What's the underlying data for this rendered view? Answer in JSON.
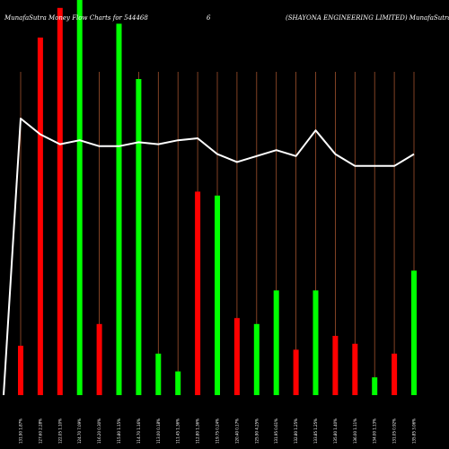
{
  "header": {
    "left": "MunafaSutra  Money Flow  Charts for 544468",
    "middle": "6",
    "right": "(SHAYONA ENGINEERING LIMITED) MunafaSutra.com"
  },
  "colors": {
    "background": "#000000",
    "up": "#00ff00",
    "down": "#ff0000",
    "line": "#ffffff",
    "grid": "#a0522d"
  },
  "chart_data": {
    "type": "bar",
    "grid": true,
    "y_range": [
      0,
      100
    ],
    "categories": [
      "131.90 1.87% ",
      "127.60 2.28% ",
      "122.05 1.10% ",
      "124.70 7.09% ",
      "116.20 0.30% ",
      "115.80 1.15% ",
      "114.70 1.16% ",
      "113.00 0.18% ",
      "111.45 1.36% ",
      "112.80 1.36% ",
      "119.75 0.24% ",
      "120.40 0.17% ",
      "125.90 4.25% ",
      "131.95 0.61% ",
      "132.80 1.25% ",
      "133.85 1.25% ",
      "135.80 1.40% ",
      "136.00 1.11% ",
      "134.00 1.13% ",
      "131.05 0.92% ",
      "135.85 3.06% "
    ],
    "values": [
      12.5,
      90.5,
      98,
      100,
      18,
      94,
      80,
      10.5,
      6,
      51.5,
      50.5,
      19.5,
      18,
      26.5,
      11.5,
      26.5,
      15,
      13,
      4.5,
      10.5,
      31.5
    ],
    "colors": [
      "down",
      "down",
      "down",
      "up",
      "down",
      "up",
      "up",
      "up",
      "up",
      "down",
      "up",
      "down",
      "up",
      "up",
      "down",
      "up",
      "down",
      "down",
      "up",
      "down",
      "up"
    ],
    "line_values": [
      70,
      66,
      63.5,
      64.5,
      63,
      63,
      64,
      63.5,
      64.5,
      65,
      61,
      59,
      60.5,
      62,
      60.5,
      67,
      61,
      58,
      58,
      58,
      61
    ]
  }
}
